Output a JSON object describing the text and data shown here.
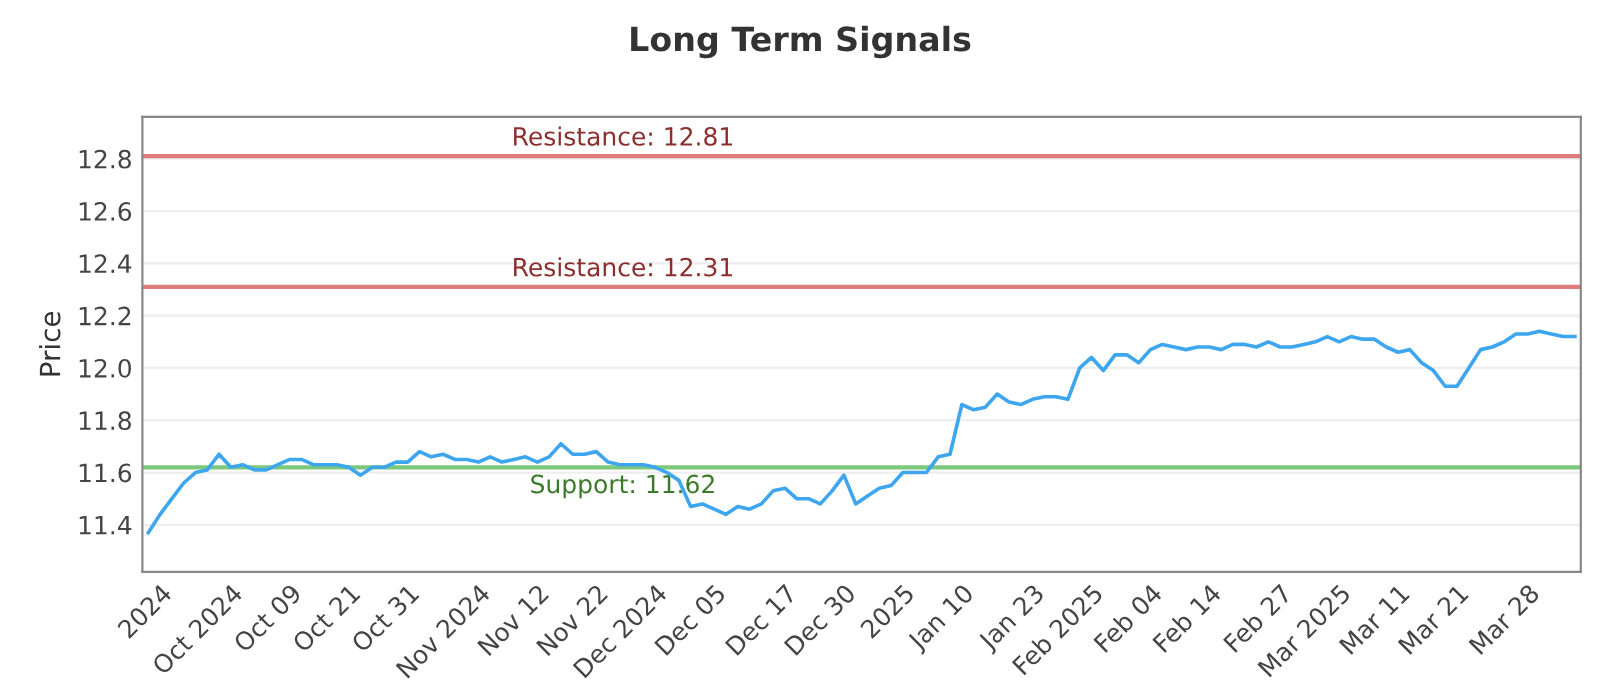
{
  "chart_data": {
    "type": "line",
    "title": "Long Term Signals",
    "ylabel": "Price",
    "categories": [
      null,
      "2024",
      null,
      null,
      null,
      null,
      null,
      "Oct 2024",
      null,
      null,
      null,
      null,
      "Oct 09",
      null,
      null,
      null,
      null,
      "Oct 21",
      null,
      null,
      null,
      null,
      "Oct 31",
      null,
      null,
      null,
      null,
      null,
      "Nov 2024",
      null,
      null,
      null,
      null,
      "Nov 12",
      null,
      null,
      null,
      null,
      "Nov 22",
      null,
      null,
      null,
      null,
      "Dec 2024",
      null,
      null,
      null,
      null,
      "Dec 05",
      null,
      null,
      null,
      null,
      null,
      "Dec 17",
      null,
      null,
      null,
      null,
      "Dec 30",
      null,
      null,
      null,
      null,
      "2025",
      null,
      null,
      null,
      null,
      "Jan 10",
      null,
      null,
      null,
      null,
      null,
      "Jan 23",
      null,
      null,
      null,
      null,
      "Feb 2025",
      null,
      null,
      null,
      null,
      "Feb 04",
      null,
      null,
      null,
      null,
      "Feb 14",
      null,
      null,
      null,
      null,
      null,
      "Feb 27",
      null,
      null,
      null,
      null,
      "Mar 2025",
      null,
      null,
      null,
      null,
      "Mar 11",
      null,
      null,
      null,
      null,
      "Mar 21",
      null,
      null,
      null,
      null,
      null,
      "Mar 28",
      null,
      null,
      null,
      null
    ],
    "series": [
      {
        "color": "#3ea6ee",
        "values": [
          11.37,
          11.44,
          11.5,
          11.56,
          11.6,
          11.61,
          11.67,
          11.62,
          11.63,
          11.61,
          11.61,
          11.63,
          11.65,
          11.65,
          11.63,
          11.63,
          11.63,
          11.62,
          11.59,
          11.62,
          11.62,
          11.64,
          11.64,
          11.68,
          11.66,
          11.67,
          11.65,
          11.65,
          11.64,
          11.66,
          11.64,
          11.65,
          11.66,
          11.64,
          11.66,
          11.71,
          11.67,
          11.67,
          11.68,
          11.64,
          11.63,
          11.63,
          11.63,
          11.62,
          11.6,
          11.57,
          11.47,
          11.48,
          11.46,
          11.44,
          11.47,
          11.46,
          11.48,
          11.53,
          11.54,
          11.5,
          11.5,
          11.48,
          11.53,
          11.59,
          11.48,
          11.51,
          11.54,
          11.55,
          11.6,
          11.6,
          11.6,
          11.66,
          11.67,
          11.86,
          11.84,
          11.85,
          11.9,
          11.87,
          11.86,
          11.88,
          11.89,
          11.89,
          11.88,
          12.0,
          12.04,
          11.99,
          12.05,
          12.05,
          12.02,
          12.07,
          12.09,
          12.08,
          12.07,
          12.08,
          12.08,
          12.07,
          12.09,
          12.09,
          12.08,
          12.1,
          12.08,
          12.08,
          12.09,
          12.1,
          12.12,
          12.1,
          12.12,
          12.11,
          12.11,
          12.08,
          12.06,
          12.07,
          12.02,
          11.99,
          11.93,
          11.93,
          12.0,
          12.07,
          12.08,
          12.1,
          12.13,
          12.13,
          12.14,
          12.13,
          12.12,
          12.12
        ]
      }
    ],
    "ylim": [
      11.22,
      12.96
    ],
    "yticks": [
      11.4,
      11.6,
      11.8,
      {
        "value": 12.0,
        "label": "12.0"
      },
      12.2,
      12.4,
      12.6,
      12.8
    ],
    "grid": "y",
    "ref_lines": [
      {
        "axis": "y",
        "value": 12.81,
        "label": "Resistance: 12.81",
        "color": "#e07b7b"
      },
      {
        "axis": "y",
        "value": 12.31,
        "label": "Resistance: 12.31",
        "color": "#e07b7b"
      },
      {
        "axis": "y",
        "value": 11.62,
        "label": "Support: 11.62",
        "color": "#7cc97c"
      }
    ]
  }
}
